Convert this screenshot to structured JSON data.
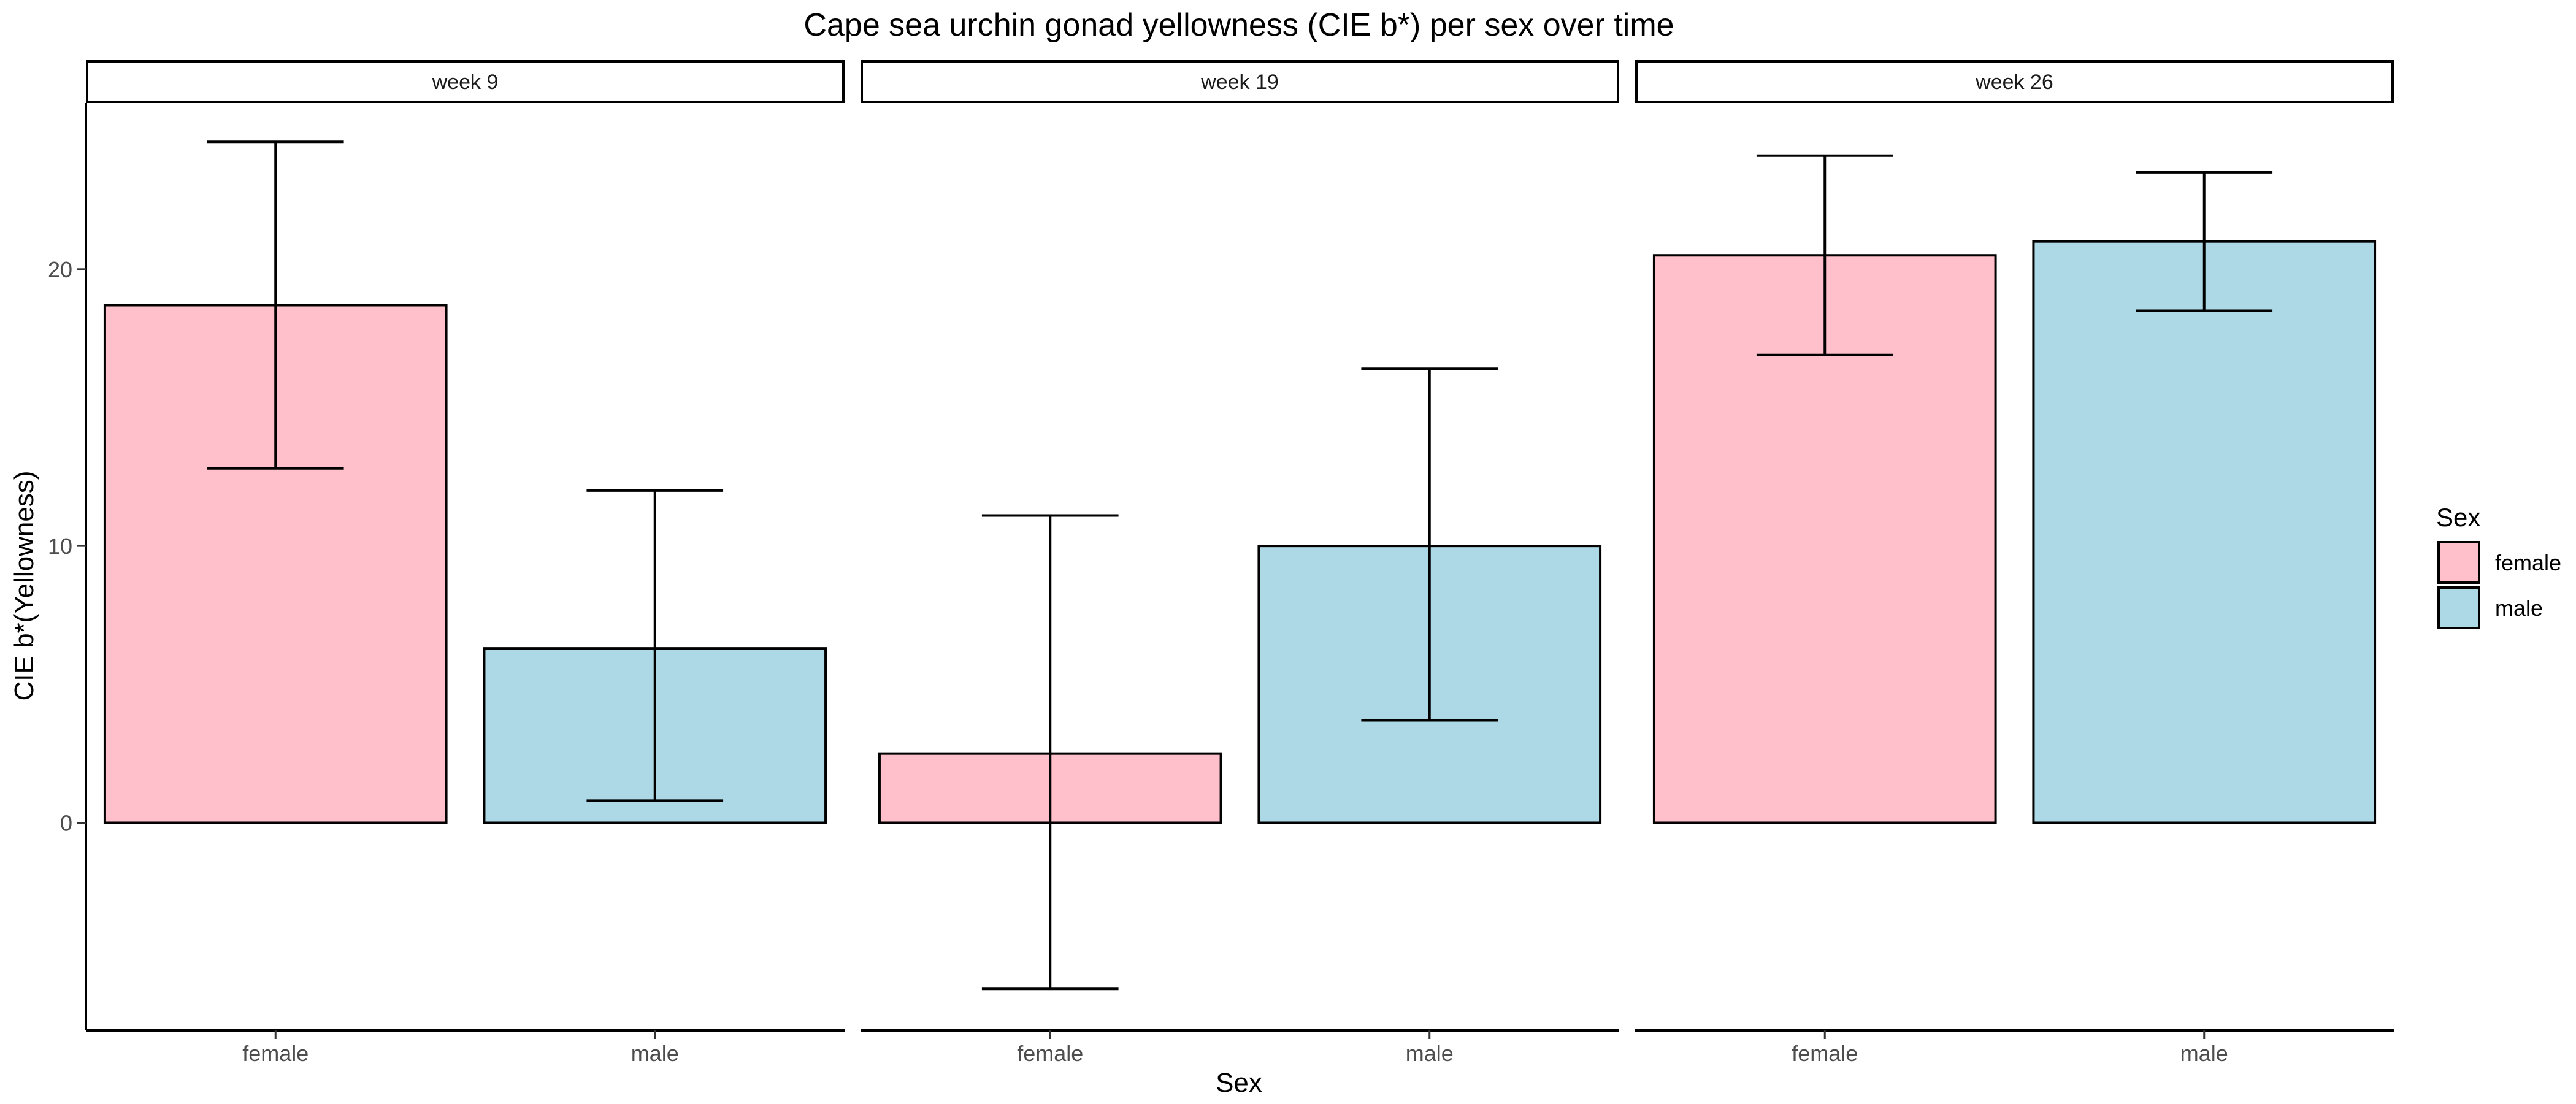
{
  "chart_data": {
    "type": "bar",
    "title": "Cape sea urchin gonad yellowness (CIE b*) per sex over time",
    "xlabel": "Sex",
    "ylabel": "CIE b*(Yellowness)",
    "ylim": [
      -7.5,
      26
    ],
    "yticks": [
      0,
      10,
      20
    ],
    "categories": [
      "female",
      "male"
    ],
    "panels": [
      {
        "label": "week 9",
        "bars": [
          {
            "sex": "female",
            "value": 18.7,
            "error_low": 12.8,
            "error_high": 24.6
          },
          {
            "sex": "male",
            "value": 6.3,
            "error_low": 0.8,
            "error_high": 12.0
          }
        ]
      },
      {
        "label": "week 19",
        "bars": [
          {
            "sex": "female",
            "value": 2.5,
            "error_low": -6.0,
            "error_high": 11.1
          },
          {
            "sex": "male",
            "value": 10.0,
            "error_low": 3.7,
            "error_high": 16.4
          }
        ]
      },
      {
        "label": "week 26",
        "bars": [
          {
            "sex": "female",
            "value": 20.5,
            "error_low": 16.9,
            "error_high": 24.1
          },
          {
            "sex": "male",
            "value": 21.0,
            "error_low": 18.5,
            "error_high": 23.5
          }
        ]
      }
    ],
    "legend": {
      "title": "Sex",
      "position": "right",
      "entries": [
        {
          "label": "female",
          "color": "#ffc0cb"
        },
        {
          "label": "male",
          "color": "#add8e6"
        }
      ]
    },
    "colors": {
      "female": "#ffc0cb",
      "male": "#add8e6"
    },
    "grid": false
  }
}
